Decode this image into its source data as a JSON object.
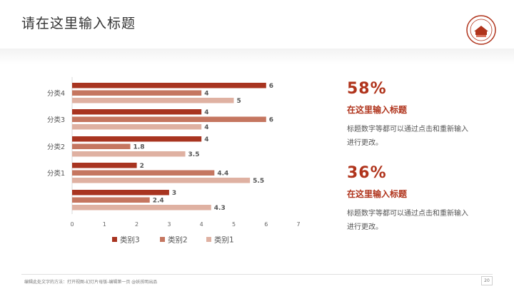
{
  "header": {
    "title": "请在这里输入标题"
  },
  "colors": {
    "accent": "#b0341c",
    "series": [
      "#a83420",
      "#c57660",
      "#dfb1a2"
    ]
  },
  "chart_data": {
    "type": "bar",
    "orientation": "horizontal",
    "categories": [
      "",
      "分类1",
      "分类2",
      "分类3",
      "分类4"
    ],
    "series": [
      {
        "name": "类别3",
        "values": [
          3,
          2,
          4,
          4,
          6
        ]
      },
      {
        "name": "类别2",
        "values": [
          2.4,
          4.4,
          1.8,
          6,
          4
        ]
      },
      {
        "name": "类别1",
        "values": [
          4.3,
          5.5,
          3.5,
          4,
          5
        ]
      }
    ],
    "xlim": [
      0,
      7
    ],
    "xticks": [
      "0",
      "1",
      "2",
      "3",
      "4",
      "5",
      "6",
      "7"
    ],
    "legend": "bottom",
    "grid": false
  },
  "stats": [
    {
      "value": "58%",
      "title": "在这里输入标题",
      "desc": "标题数字等都可以通过点击和重新输入进行更改。"
    },
    {
      "value": "36%",
      "title": "在这里输入标题",
      "desc": "标题数字等都可以通过点击和重新输入进行更改。"
    }
  ],
  "footer": {
    "text": "编辑此处文字的方法：打开视图-幻灯片母版-编辑第一页 @妖孩明出品",
    "page": "20"
  }
}
